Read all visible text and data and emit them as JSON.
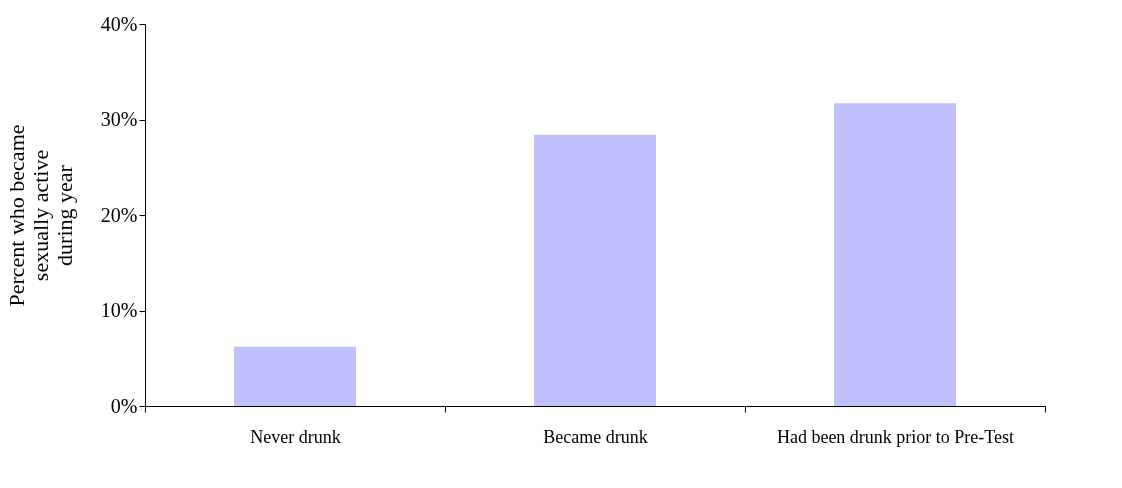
{
  "chart_data": {
    "type": "bar",
    "categories": [
      "Never drunk",
      "Became drunk",
      "Had been drunk prior to Pre-Test"
    ],
    "values": [
      6.2,
      28.4,
      31.7
    ],
    "color": "#c0c0ff",
    "ylabel": "Percent who became sexually active during year",
    "ylim": [
      0,
      40
    ],
    "yticks": [
      {
        "value": 0,
        "label": "0%"
      },
      {
        "value": 10,
        "label": "10%"
      },
      {
        "value": 20,
        "label": "20%"
      },
      {
        "value": 30,
        "label": "30%"
      },
      {
        "value": 40,
        "label": "40%"
      }
    ],
    "grid": false
  }
}
